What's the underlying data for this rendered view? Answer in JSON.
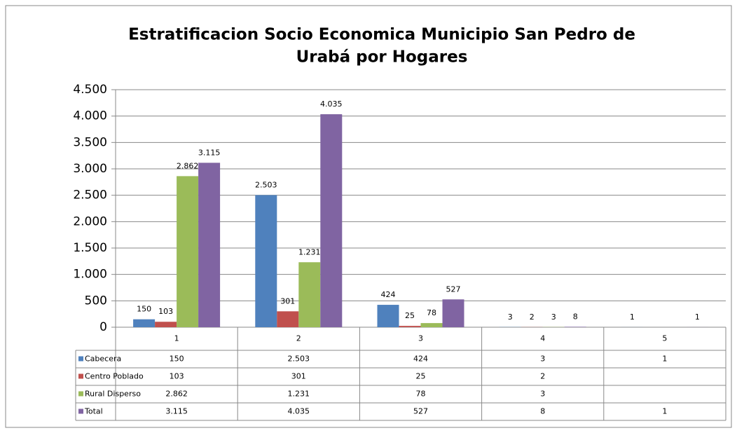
{
  "chart_data": {
    "type": "bar",
    "title": [
      "Estratificacion Socio Economica Municipio  San Pedro de",
      "Urabá por Hogares"
    ],
    "categories": [
      "1",
      "2",
      "3",
      "4",
      "5"
    ],
    "series": [
      {
        "name": "Cabecera",
        "color": "#4f81bd",
        "values": [
          150,
          2503,
          424,
          3,
          1
        ],
        "value_labels": [
          "150",
          "2.503",
          "424",
          "3",
          "1"
        ]
      },
      {
        "name": "Centro Poblado",
        "color": "#c0504d",
        "values": [
          103,
          301,
          25,
          2,
          null
        ],
        "value_labels": [
          "103",
          "301",
          "25",
          "2",
          null
        ]
      },
      {
        "name": "Rural Disperso",
        "color": "#9bbb59",
        "values": [
          2862,
          1231,
          78,
          3,
          null
        ],
        "value_labels": [
          "2.862",
          "1.231",
          "78",
          "3",
          null
        ]
      },
      {
        "name": "Total",
        "color": "#8064a2",
        "values": [
          3115,
          4035,
          527,
          8,
          1
        ],
        "value_labels": [
          "3.115",
          "4.035",
          "527",
          "8",
          "1"
        ]
      }
    ],
    "ylim": [
      0,
      4500
    ],
    "yticks": [
      0,
      500,
      {
        "value": 1000,
        "label": "1.000"
      },
      {
        "value": 1500,
        "label": "1.500"
      },
      {
        "value": 2000,
        "label": "2.000"
      },
      {
        "value": 2500,
        "label": "2.500"
      },
      {
        "value": 3000,
        "label": "3.000"
      },
      {
        "value": 3500,
        "label": "3.500"
      },
      {
        "value": 4000,
        "label": "4.000"
      },
      {
        "value": 4500,
        "label": "4.500"
      }
    ],
    "grid": true,
    "legend": "table"
  }
}
